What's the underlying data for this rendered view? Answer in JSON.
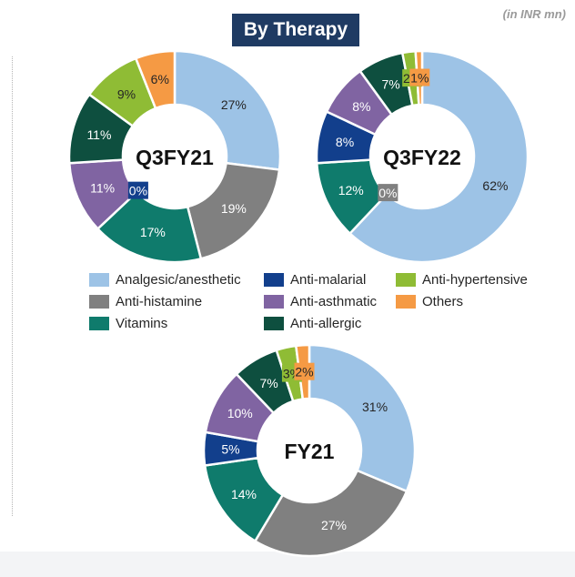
{
  "header": {
    "title": "By Therapy",
    "units": "(in INR mn)"
  },
  "legend": [
    {
      "name": "Analgesic/anesthetic",
      "color": "#9dc3e6"
    },
    {
      "name": "Anti-histamine",
      "color": "#808080"
    },
    {
      "name": "Vitamins",
      "color": "#0f7b6c"
    },
    {
      "name": "Anti-malarial",
      "color": "#123f8c"
    },
    {
      "name": "Anti-asthmatic",
      "color": "#8064a2"
    },
    {
      "name": "Anti-allergic",
      "color": "#0e4f3f"
    },
    {
      "name": "Anti-hypertensive",
      "color": "#8fbc35"
    },
    {
      "name": "Others",
      "color": "#f59a44"
    }
  ],
  "chart_data": [
    {
      "type": "pie",
      "title": "Q3FY21",
      "categories": [
        "Analgesic/anesthetic",
        "Anti-histamine",
        "Vitamins",
        "Anti-malarial",
        "Anti-asthmatic",
        "Anti-allergic",
        "Anti-hypertensive",
        "Others"
      ],
      "values": [
        27,
        19,
        17,
        0,
        11,
        11,
        9,
        6
      ],
      "labels": [
        "27%",
        "19%",
        "17%",
        "0%",
        "11%",
        "11%",
        "9%",
        "6%"
      ]
    },
    {
      "type": "pie",
      "title": "Q3FY22",
      "categories": [
        "Analgesic/anesthetic",
        "Anti-histamine",
        "Vitamins",
        "Anti-malarial",
        "Anti-asthmatic",
        "Anti-allergic",
        "Anti-hypertensive",
        "Others"
      ],
      "values": [
        62,
        0,
        12,
        8,
        8,
        7,
        2,
        1
      ],
      "labels": [
        "62%",
        "0%",
        "12%",
        "8%",
        "8%",
        "7%",
        "2%",
        "1%"
      ]
    },
    {
      "type": "pie",
      "title": "FY21",
      "categories": [
        "Analgesic/anesthetic",
        "Anti-histamine",
        "Vitamins",
        "Anti-malarial",
        "Anti-asthmatic",
        "Anti-allergic",
        "Anti-hypertensive",
        "Others"
      ],
      "values": [
        31,
        27,
        14,
        5,
        10,
        7,
        3,
        2
      ],
      "labels": [
        "31%",
        "27%",
        "14%",
        "5%",
        "10%",
        "7%",
        "3%",
        "2%"
      ]
    }
  ]
}
